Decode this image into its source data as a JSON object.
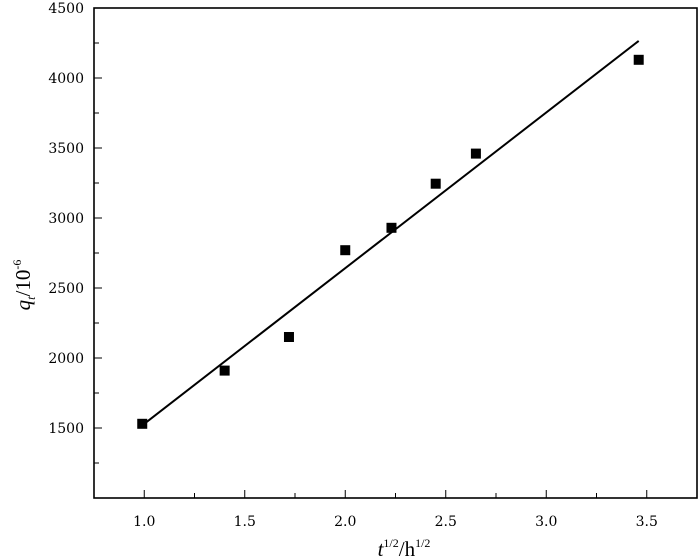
{
  "chart_data": {
    "type": "scatter",
    "title": "",
    "xlabel": {
      "var": "t",
      "sup": "1/2",
      "sep": "/h",
      "sup2": "1/2"
    },
    "ylabel": {
      "var": "q",
      "sub": "t",
      "sep": "/10",
      "sup": "-6"
    },
    "xlim": [
      0.75,
      3.75
    ],
    "ylim": [
      1000,
      4500
    ],
    "x_ticks": [
      1.0,
      1.5,
      2.0,
      2.5,
      3.0,
      3.5
    ],
    "x_tick_labels": [
      "1.0",
      "1.5",
      "2.0",
      "2.5",
      "3.0",
      "3.5"
    ],
    "y_ticks": [
      1500,
      2000,
      2500,
      3000,
      3500,
      4000,
      4500
    ],
    "y_tick_labels": [
      "1500",
      "2000",
      "2500",
      "3000",
      "3500",
      "4000",
      "4500"
    ],
    "grid": false,
    "series": [
      {
        "marker": "square",
        "x": [
          0.99,
          1.4,
          1.72,
          2.0,
          2.23,
          2.45,
          2.65,
          3.46
        ],
        "y": [
          1530,
          1910,
          2150,
          2770,
          2930,
          3245,
          3460,
          4130
        ]
      }
    ],
    "fit_line": {
      "x": [
        1.0,
        3.46
      ],
      "y": [
        1530,
        4265
      ]
    }
  }
}
